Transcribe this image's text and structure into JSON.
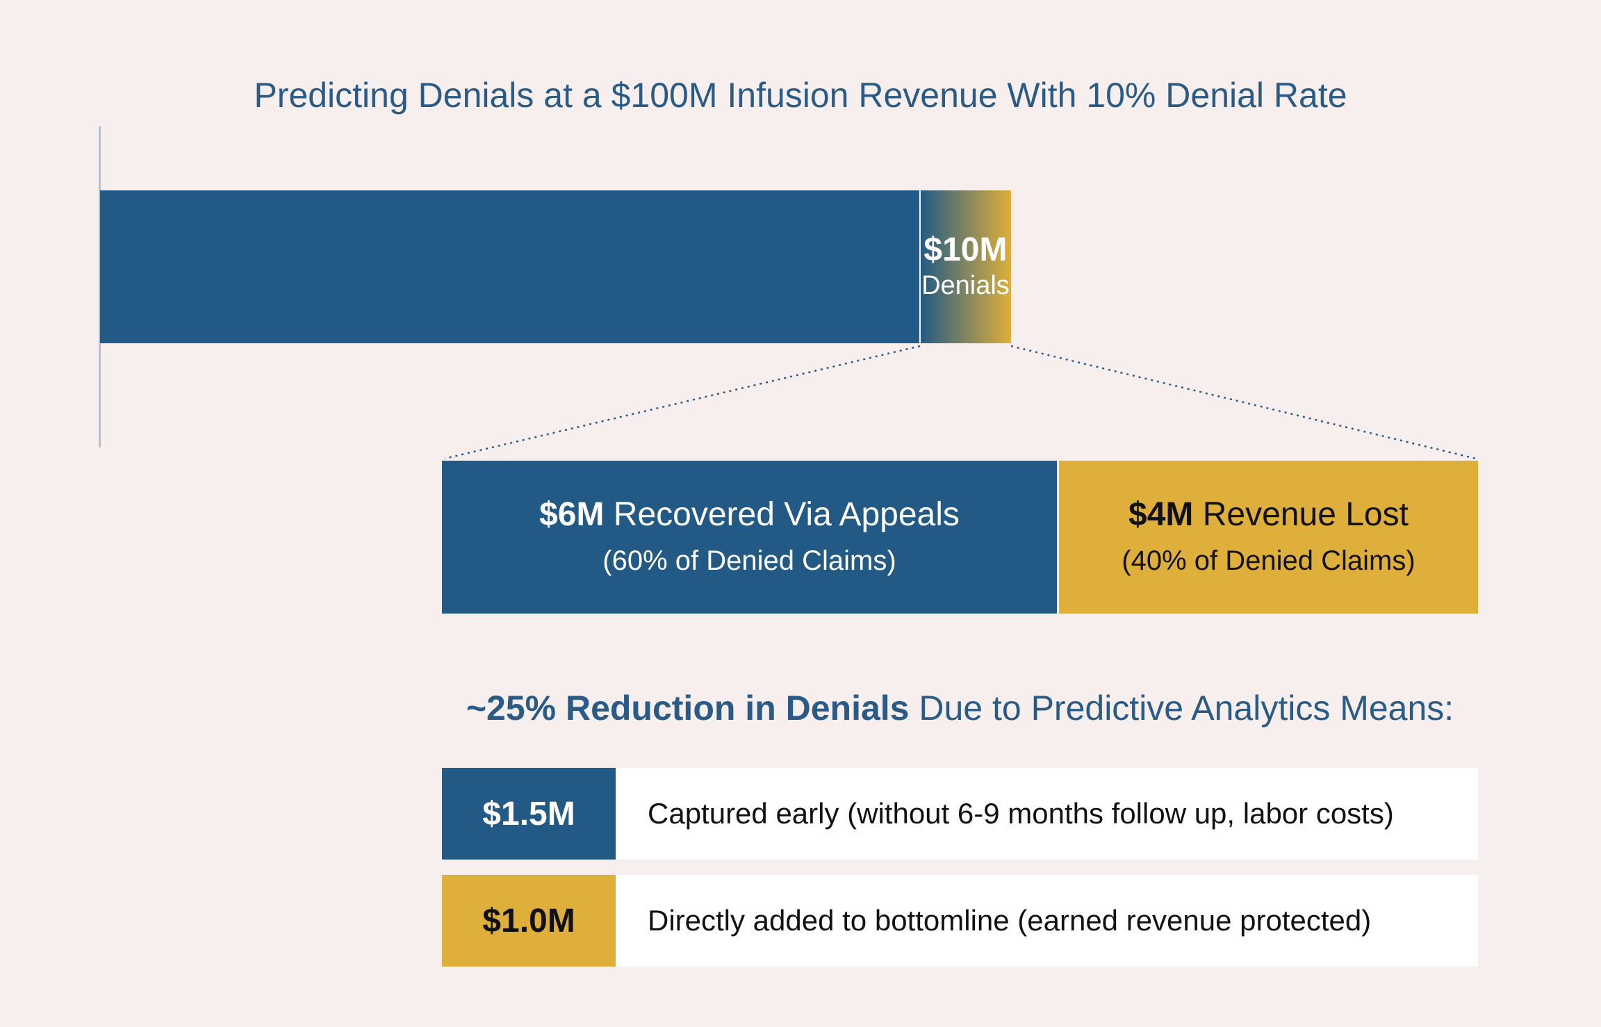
{
  "chart_data": {
    "type": "bar",
    "title": "Predicting Denials at a $100M Infusion Revenue With 10% Denial Rate",
    "total": 100,
    "unit": "$M",
    "segments": [
      {
        "value": 90,
        "color": "#225a85",
        "label": ""
      },
      {
        "value": 10,
        "color": "#deaf3a",
        "value_text": "$10M",
        "label": "Denials"
      }
    ],
    "breakdown": [
      {
        "value": 6,
        "value_text": "$6M",
        "label": "Recovered Via Appeals",
        "sub": "(60% of Denied Claims)",
        "color": "#225a85"
      },
      {
        "value": 4,
        "value_text": "$4M",
        "label": "Revenue Lost",
        "sub": "(40% of Denied Claims)",
        "color": "#deaf3a"
      }
    ]
  },
  "reduction": {
    "bold": "~25% Reduction in Denials",
    "rest": " Due to Predictive Analytics Means:"
  },
  "outcomes": [
    {
      "value": "$1.5M",
      "text": "Captured early (without 6-9 months follow up, labor costs)",
      "color": "#225a85"
    },
    {
      "value": "$1.0M",
      "text": "Directly added to bottomline (earned revenue protected)",
      "color": "#deaf3a"
    }
  ]
}
